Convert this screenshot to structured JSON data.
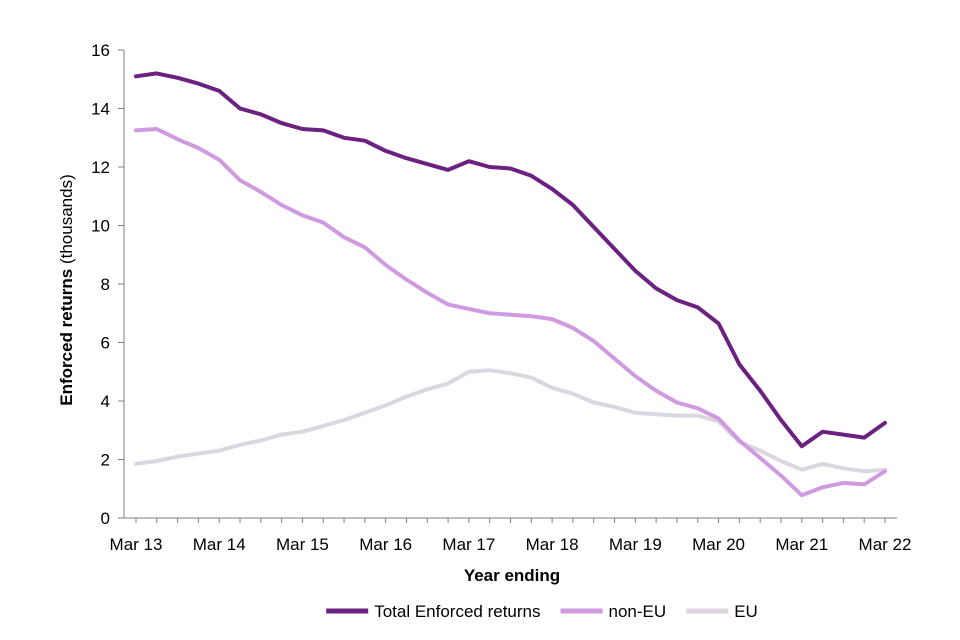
{
  "chart_data": {
    "type": "line",
    "title": "",
    "xlabel": "Year ending",
    "ylabel_bold": "Enforced returns",
    "ylabel_rest": " (thousands)",
    "ylim": [
      0,
      16
    ],
    "yticks": [
      0,
      2,
      4,
      6,
      8,
      10,
      12,
      14,
      16
    ],
    "x_tick_labels": [
      "Mar 13",
      "Mar 14",
      "Mar 15",
      "Mar 16",
      "Mar 17",
      "Mar 18",
      "Mar 19",
      "Mar 20",
      "Mar 21",
      "Mar 22"
    ],
    "grid": false,
    "legend_position": "bottom",
    "x": [
      "Mar 13",
      "Jun 13",
      "Sep 13",
      "Dec 13",
      "Mar 14",
      "Jun 14",
      "Sep 14",
      "Dec 14",
      "Mar 15",
      "Jun 15",
      "Sep 15",
      "Dec 15",
      "Mar 16",
      "Jun 16",
      "Sep 16",
      "Dec 16",
      "Mar 17",
      "Jun 17",
      "Sep 17",
      "Dec 17",
      "Mar 18",
      "Jun 18",
      "Sep 18",
      "Dec 18",
      "Mar 19",
      "Jun 19",
      "Sep 19",
      "Dec 19",
      "Mar 20",
      "Jun 20",
      "Sep 20",
      "Dec 20",
      "Mar 21",
      "Jun 21",
      "Sep 21",
      "Dec 21",
      "Mar 22"
    ],
    "series": [
      {
        "name": "Total Enforced returns",
        "color": "#6b2180",
        "values": [
          15.1,
          15.2,
          15.05,
          14.85,
          14.6,
          14.0,
          13.8,
          13.5,
          13.3,
          13.25,
          13.0,
          12.9,
          12.55,
          12.3,
          12.1,
          11.9,
          12.2,
          12.0,
          11.95,
          11.7,
          11.25,
          10.7,
          9.95,
          9.2,
          8.45,
          7.85,
          7.45,
          7.2,
          6.65,
          5.25,
          4.35,
          3.35,
          2.45,
          2.95,
          2.85,
          2.75,
          3.25
        ]
      },
      {
        "name": "non-EU",
        "color": "#d09ae0",
        "values": [
          13.25,
          13.3,
          12.95,
          12.65,
          12.25,
          11.55,
          11.15,
          10.7,
          10.35,
          10.1,
          9.6,
          9.25,
          8.65,
          8.15,
          7.7,
          7.3,
          7.15,
          7.0,
          6.95,
          6.9,
          6.8,
          6.5,
          6.05,
          5.45,
          4.85,
          4.35,
          3.95,
          3.75,
          3.4,
          2.65,
          2.05,
          1.45,
          0.78,
          1.05,
          1.2,
          1.15,
          1.6
        ]
      },
      {
        "name": "EU",
        "color": "#dcd6e0",
        "values": [
          1.85,
          1.95,
          2.1,
          2.2,
          2.3,
          2.5,
          2.65,
          2.85,
          2.95,
          3.15,
          3.35,
          3.6,
          3.85,
          4.15,
          4.4,
          4.6,
          5.0,
          5.05,
          4.95,
          4.8,
          4.45,
          4.25,
          3.95,
          3.8,
          3.6,
          3.55,
          3.5,
          3.5,
          3.3,
          2.6,
          2.3,
          1.95,
          1.65,
          1.85,
          1.7,
          1.6,
          1.65
        ]
      }
    ]
  }
}
